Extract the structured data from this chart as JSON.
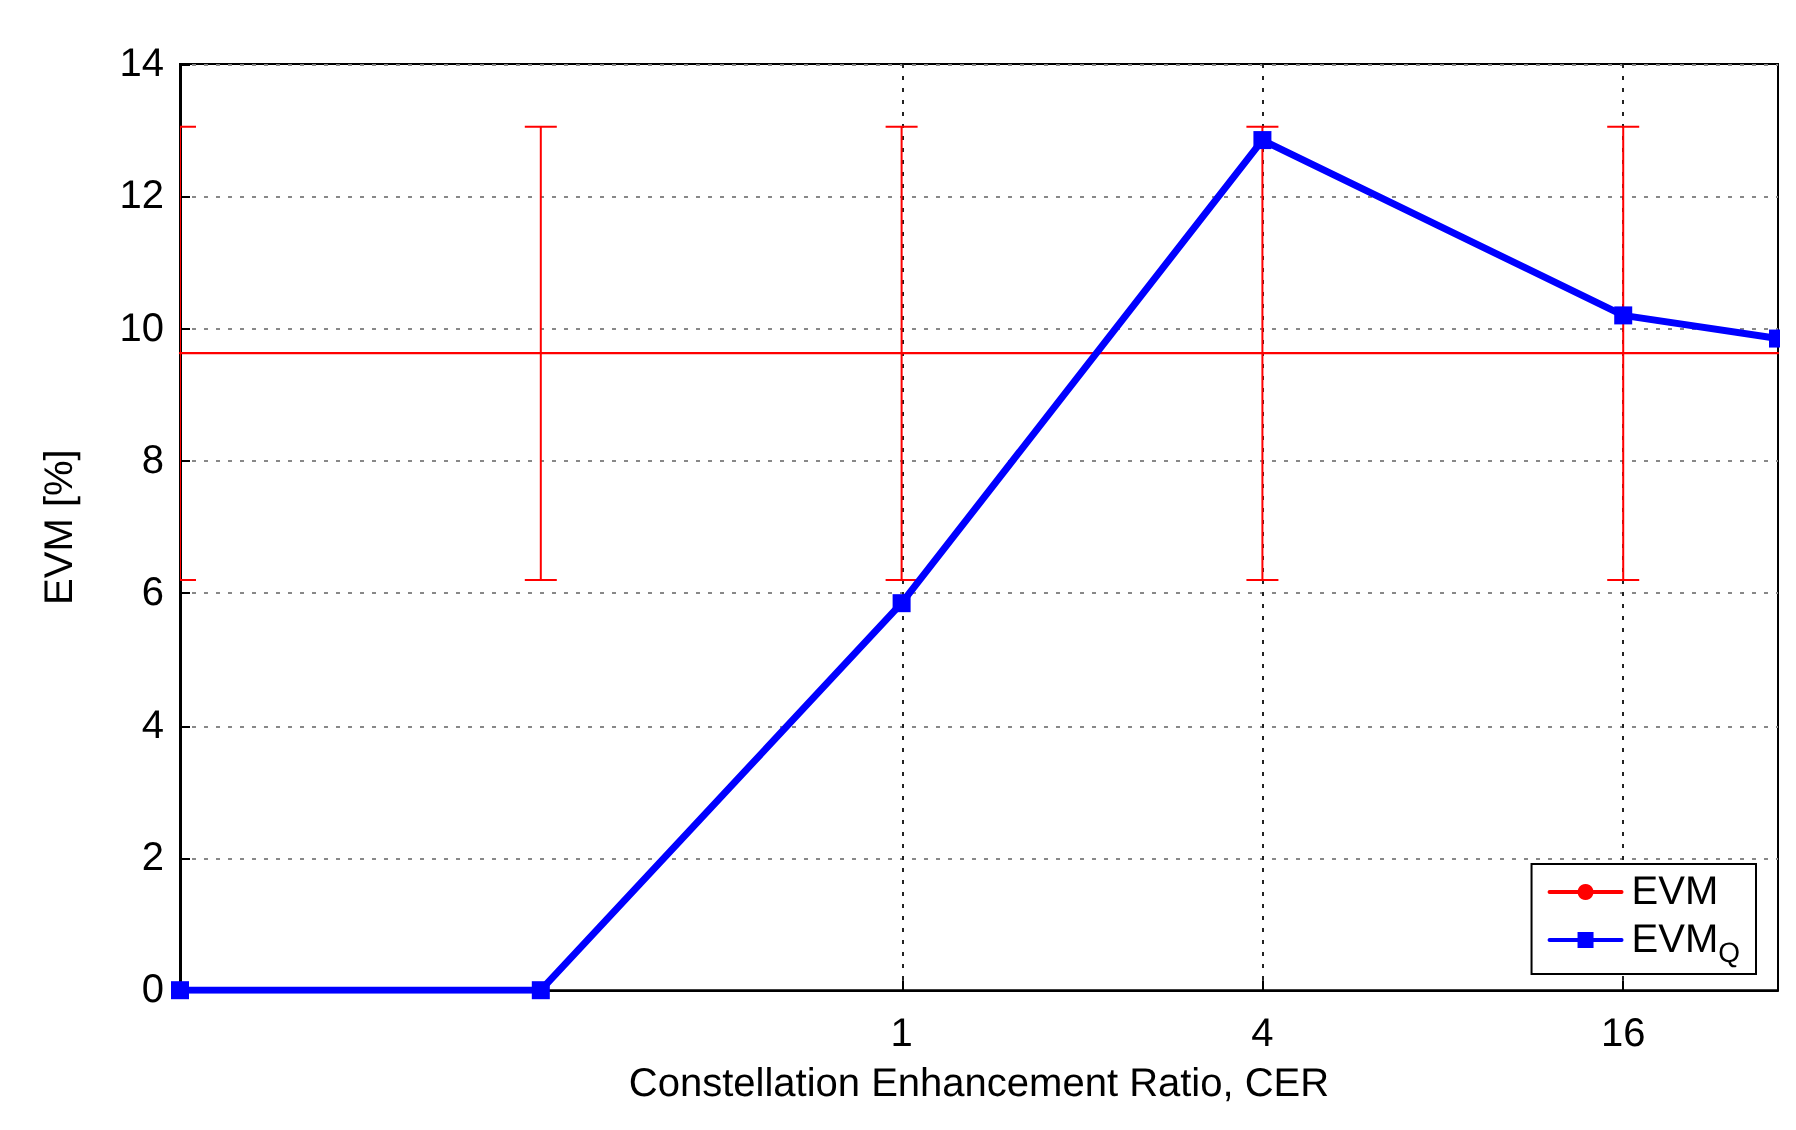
{
  "chart_data": {
    "type": "line",
    "xlabel": "Constellation Enhancement Ratio, CER",
    "ylabel": "EVM [%]",
    "log": "x",
    "xlim": [
      0.0625,
      29
    ],
    "xticks": [
      1,
      4,
      16
    ],
    "ylim": [
      0,
      14
    ],
    "yticks": [
      0,
      2,
      4,
      6,
      8,
      10,
      12,
      14
    ],
    "grid": true,
    "legend": "bottom right",
    "series": [
      {
        "name": "EVM",
        "color": "#ff0000",
        "marker": "none",
        "x": [
          0.0625,
          0.25,
          1,
          4,
          16,
          29
        ],
        "values": [
          9.63,
          9.63,
          9.63,
          9.63,
          9.63,
          9.63
        ],
        "errors": [
          [
            6.2,
            13.05
          ],
          [
            6.2,
            13.05
          ],
          [
            6.2,
            13.05
          ],
          [
            6.2,
            13.05
          ],
          [
            6.2,
            13.05
          ],
          null
        ]
      },
      {
        "name": "EVM$_{Q}$",
        "color": "#0000ff",
        "marker": "square",
        "x": [
          0.0625,
          0.25,
          1,
          4,
          16,
          29
        ],
        "values": [
          0,
          0,
          5.85,
          12.85,
          10.2,
          9.85
        ]
      }
    ]
  }
}
